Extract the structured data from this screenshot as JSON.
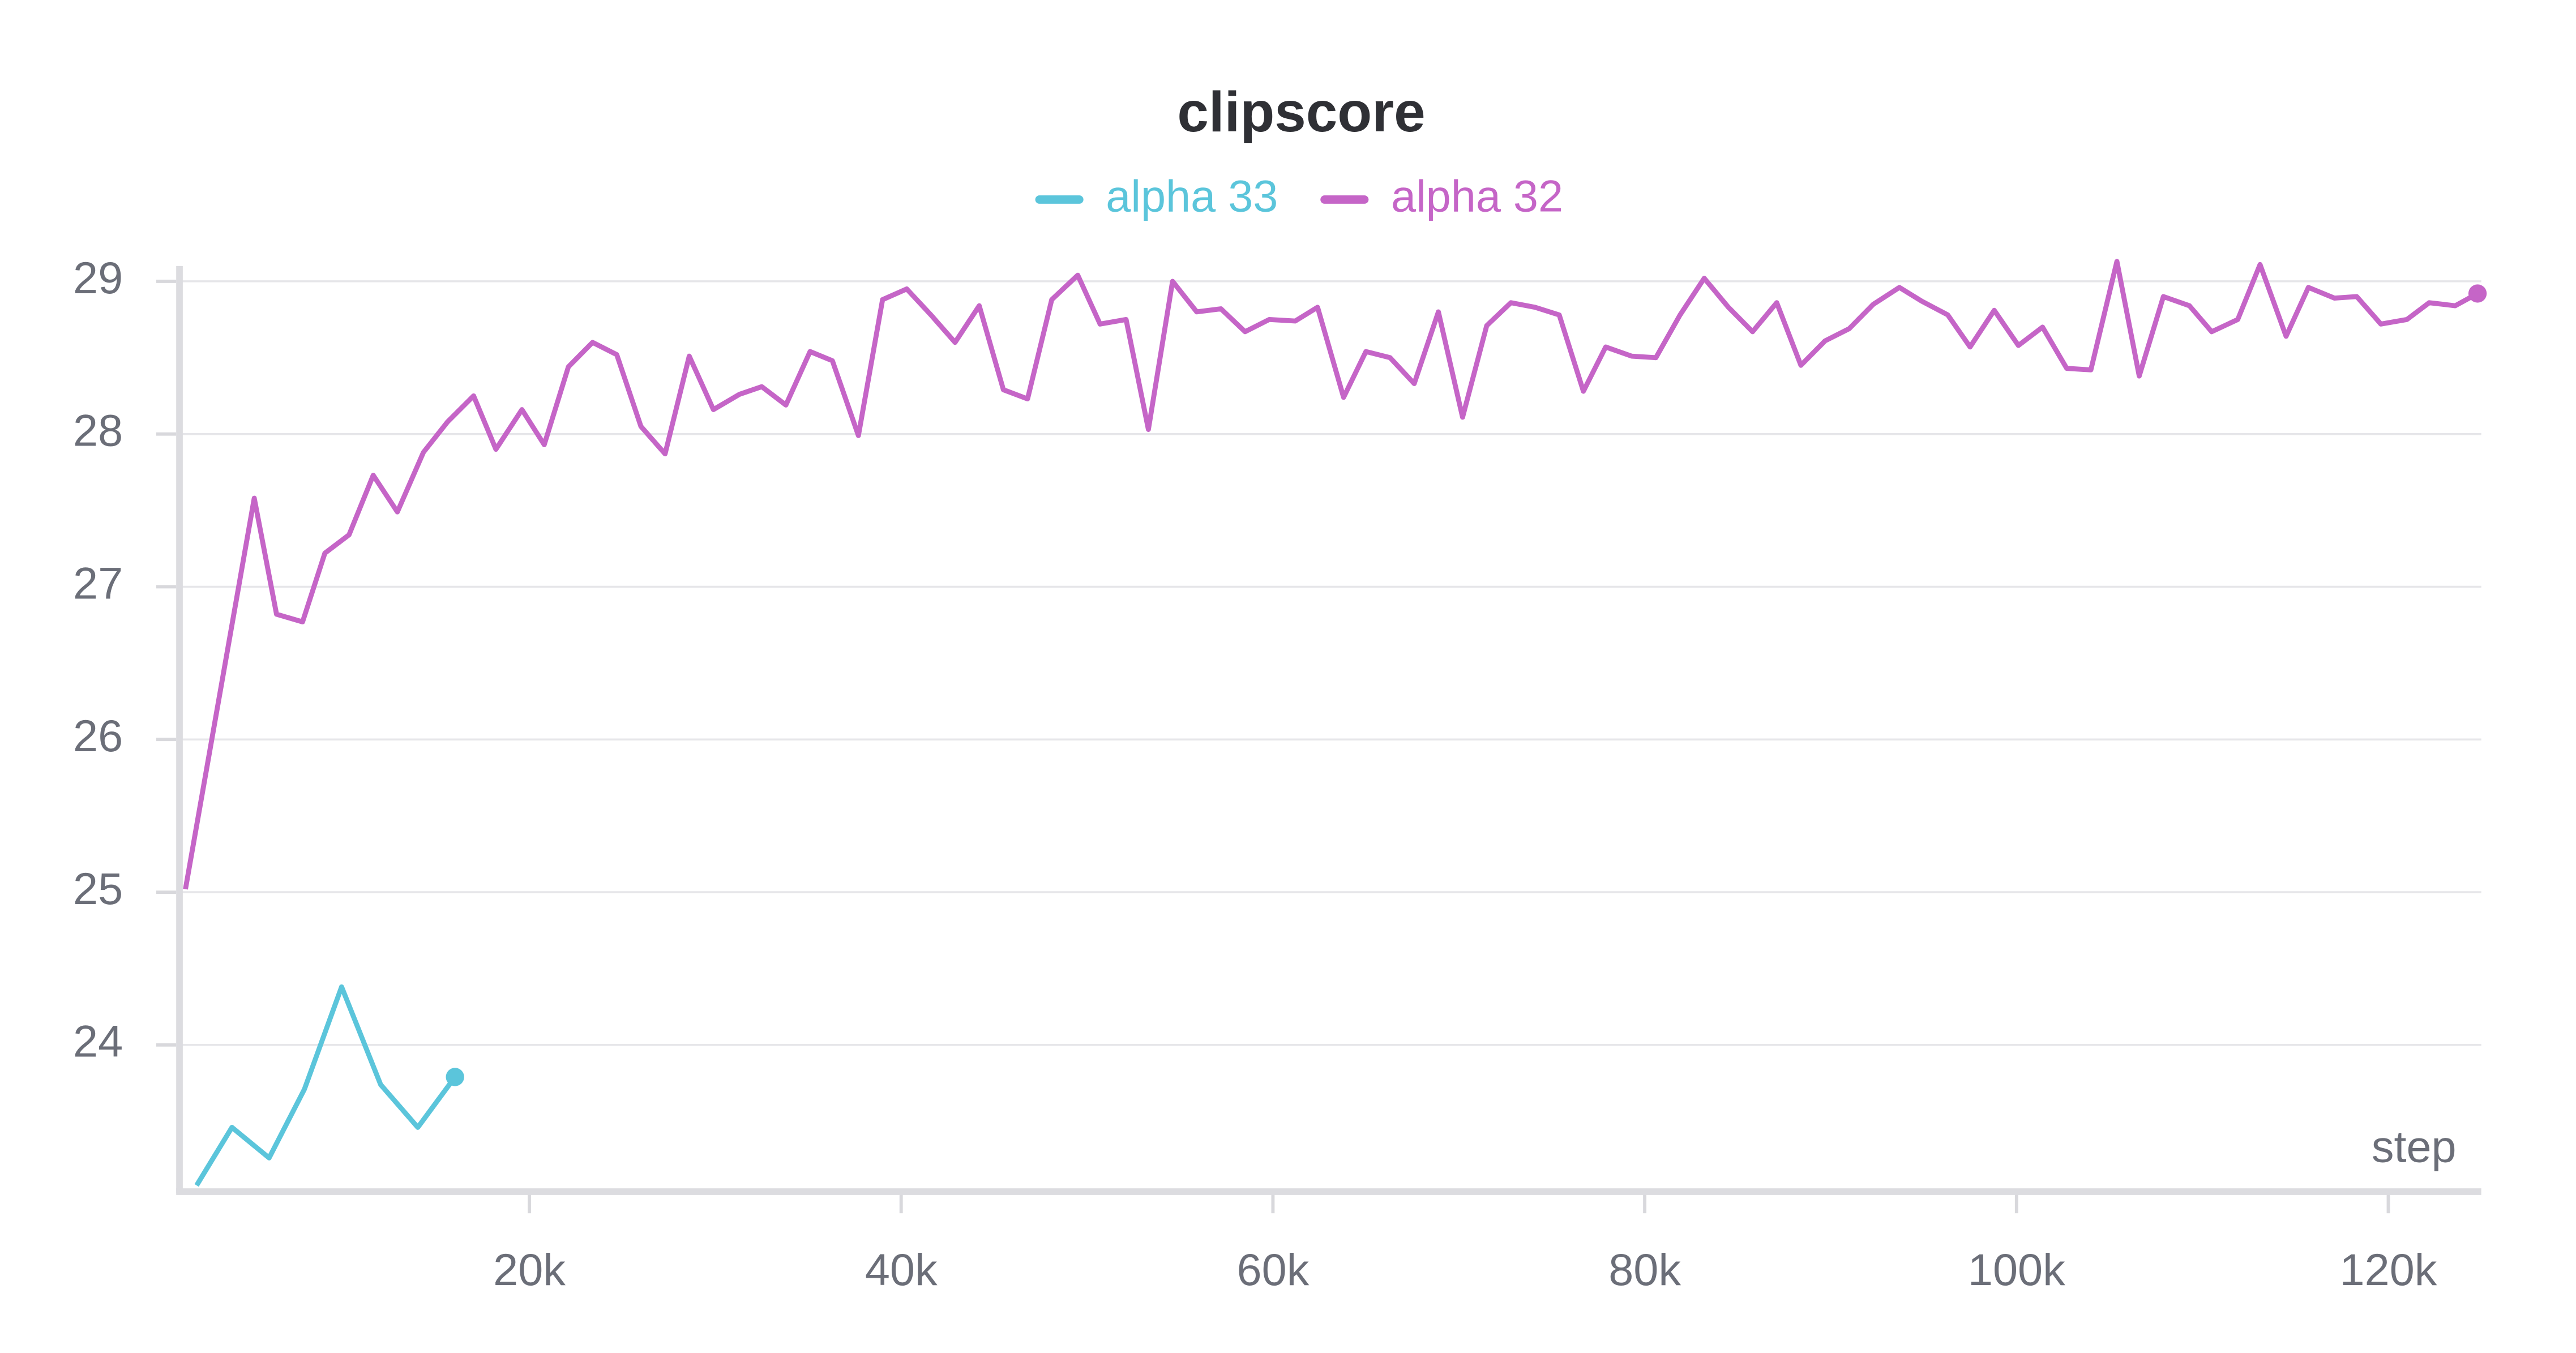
{
  "chart_data": {
    "type": "line",
    "title": "clipscore",
    "x_label": "step",
    "xlim": [
      1000,
      125000
    ],
    "ylim": [
      23.05,
      29.1
    ],
    "xticks": [
      {
        "value": 20000,
        "label": "20k"
      },
      {
        "value": 40000,
        "label": "40k"
      },
      {
        "value": 60000,
        "label": "60k"
      },
      {
        "value": 80000,
        "label": "80k"
      },
      {
        "value": 100000,
        "label": "100k"
      },
      {
        "value": 120000,
        "label": "120k"
      }
    ],
    "yticks": [
      24,
      25,
      26,
      27,
      28,
      29
    ],
    "grid": true,
    "legend": "top",
    "series": [
      {
        "name": "alpha 33",
        "color": "#5bc5db",
        "x": [
          2100,
          4000,
          6000,
          7900,
          9900,
          12000,
          14000,
          16000
        ],
        "values": [
          23.08,
          23.46,
          23.26,
          23.71,
          24.38,
          23.74,
          23.46,
          23.79
        ]
      },
      {
        "name": "alpha 32",
        "color": "#c565c7",
        "x": [
          1500,
          5200,
          6400,
          7800,
          9000,
          10300,
          11600,
          12900,
          14300,
          15600,
          17000,
          18200,
          19600,
          20800,
          22100,
          23400,
          24700,
          26000,
          27300,
          28600,
          29900,
          31300,
          32500,
          33800,
          35100,
          36300,
          37700,
          39000,
          40300,
          41600,
          42900,
          44200,
          45500,
          46800,
          48100,
          49500,
          50700,
          52100,
          53300,
          54600,
          55900,
          57200,
          58500,
          59800,
          61200,
          62400,
          63800,
          65000,
          66300,
          67600,
          68900,
          70200,
          71500,
          72800,
          74100,
          75400,
          76700,
          77900,
          79300,
          80600,
          81900,
          83200,
          84500,
          85800,
          87100,
          88400,
          89700,
          91000,
          92300,
          93700,
          94900,
          96300,
          97500,
          98800,
          100100,
          101400,
          102700,
          104000,
          105400,
          106600,
          107900,
          109300,
          110500,
          111900,
          113100,
          114500,
          115700,
          117100,
          118300,
          119600,
          121000,
          122200,
          123600,
          124800
        ],
        "values": [
          25.02,
          27.58,
          26.82,
          26.77,
          27.22,
          27.34,
          27.73,
          27.49,
          27.88,
          28.08,
          28.25,
          27.9,
          28.16,
          27.93,
          28.44,
          28.6,
          28.52,
          28.05,
          27.87,
          28.51,
          28.16,
          28.26,
          28.31,
          28.19,
          28.54,
          28.48,
          27.99,
          28.88,
          28.95,
          28.78,
          28.6,
          28.84,
          28.29,
          28.23,
          28.88,
          29.04,
          28.72,
          28.75,
          28.03,
          29.0,
          28.8,
          28.82,
          28.67,
          28.75,
          28.74,
          28.83,
          28.24,
          28.54,
          28.5,
          28.33,
          28.8,
          28.11,
          28.71,
          28.86,
          28.83,
          28.78,
          28.28,
          28.57,
          28.51,
          28.5,
          28.78,
          29.02,
          28.83,
          28.67,
          28.86,
          28.45,
          28.61,
          28.69,
          28.85,
          28.96,
          28.87,
          28.78,
          28.57,
          28.81,
          28.58,
          28.7,
          28.43,
          28.42,
          29.13,
          28.38,
          28.9,
          28.84,
          28.67,
          28.75,
          29.11,
          28.64,
          28.96,
          28.89,
          28.9,
          28.72,
          28.75,
          28.86,
          28.84,
          28.92
        ]
      }
    ]
  }
}
